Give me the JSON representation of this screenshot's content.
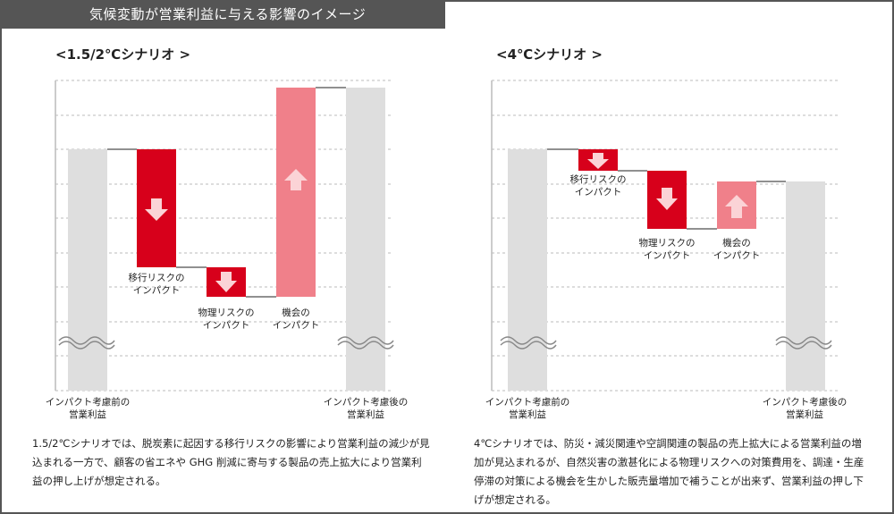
{
  "header": {
    "title": "気候変動が営業利益に与える影響のイメージ"
  },
  "scenarios": [
    {
      "title": "<1.5/2℃シナリオ >",
      "bars": {
        "before": {
          "line1": "インパクト考慮前の",
          "line2": "営業利益"
        },
        "transition": {
          "line1": "移行リスクの",
          "line2": "インパクト"
        },
        "physical": {
          "line1": "物理リスクの",
          "line2": "インパクト"
        },
        "opportunity": {
          "line1": "機会の",
          "line2": "インパクト"
        },
        "after": {
          "line1": "インパクト考慮後の",
          "line2": "営業利益"
        }
      },
      "description": "1.5/2℃シナリオでは、脱炭素に起因する移行リスクの影響により営業利益の減少が見込まれる一方で、顧客の省エネや GHG 削減に寄与する製品の売上拡大により営業利益の押し上げが想定される。"
    },
    {
      "title": "<4℃シナリオ >",
      "bars": {
        "before": {
          "line1": "インパクト考慮前の",
          "line2": "営業利益"
        },
        "transition": {
          "line1": "移行リスクの",
          "line2": "インパクト"
        },
        "physical": {
          "line1": "物理リスクの",
          "line2": "インパクト"
        },
        "opportunity": {
          "line1": "機会の",
          "line2": "インパクト"
        },
        "after": {
          "line1": "インパクト考慮後の",
          "line2": "営業利益"
        }
      },
      "description": "4℃シナリオでは、防災・減災関連や空調関連の製品の売上拡大による営業利益の増加が見込まれるが、自然災害の激甚化による物理リスクへの対策費用を、調達・生産停滞の対策による機会を生かした販売量増加で補うことが出来ず、営業利益の押し下げが想定される。"
    }
  ],
  "colors": {
    "base_bar": "#dedede",
    "risk": "#d7001b",
    "opportunity": "#f0808a",
    "arrow": "#fbd3d6",
    "grid": "#bbbbbb",
    "header_bg": "#555555"
  }
}
